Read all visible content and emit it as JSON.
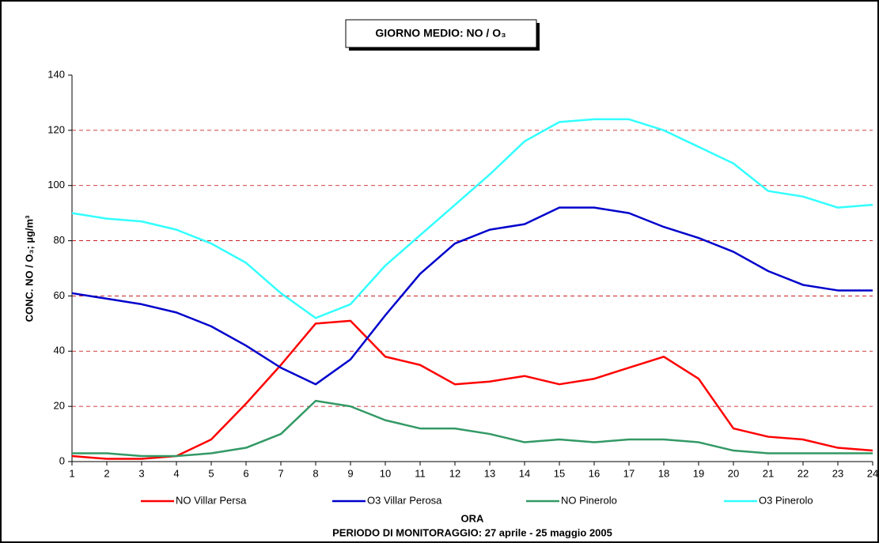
{
  "chart_data": {
    "type": "line",
    "title": "GIORNO MEDIO: NO / O₃",
    "y_label": "CONC. NO / O₃;  µg/m³",
    "x_label": "ORA",
    "subtitle": "PERIODO DI MONITORAGGIO: 27 aprile - 25 maggio 2005",
    "x": [
      1,
      2,
      3,
      4,
      5,
      6,
      7,
      8,
      9,
      10,
      11,
      12,
      13,
      14,
      15,
      16,
      17,
      18,
      19,
      20,
      21,
      22,
      23,
      24
    ],
    "xlim": [
      1,
      24
    ],
    "xticks": [
      1,
      2,
      3,
      4,
      5,
      6,
      7,
      8,
      9,
      10,
      11,
      12,
      13,
      14,
      15,
      16,
      17,
      18,
      19,
      20,
      21,
      22,
      23,
      24
    ],
    "ylim": [
      0,
      140
    ],
    "yticks": [
      0,
      20,
      40,
      60,
      80,
      100,
      120,
      140
    ],
    "grid": true,
    "legend": "bottom",
    "series": [
      {
        "name": "NO Villar Persa",
        "color": "#ff0000",
        "values": [
          2,
          1,
          1,
          2,
          8,
          21,
          35,
          50,
          51,
          38,
          35,
          28,
          29,
          31,
          28,
          30,
          34,
          38,
          30,
          12,
          9,
          8,
          5,
          4
        ]
      },
      {
        "name": "O3 Villar Perosa",
        "color": "#0000cc",
        "values": [
          61,
          59,
          57,
          54,
          49,
          42,
          34,
          28,
          37,
          53,
          68,
          79,
          84,
          86,
          92,
          92,
          90,
          85,
          81,
          76,
          69,
          64,
          62,
          62
        ]
      },
      {
        "name": "NO Pinerolo",
        "color": "#339966",
        "values": [
          3,
          3,
          2,
          2,
          3,
          5,
          10,
          22,
          20,
          15,
          12,
          12,
          10,
          7,
          8,
          7,
          8,
          8,
          7,
          4,
          3,
          3,
          3,
          3
        ]
      },
      {
        "name": "O3 Pinerolo",
        "color": "#33ffff",
        "values": [
          90,
          88,
          87,
          84,
          79,
          72,
          61,
          52,
          57,
          71,
          82,
          93,
          104,
          116,
          123,
          124,
          124,
          120,
          114,
          108,
          98,
          96,
          92,
          93
        ]
      }
    ]
  }
}
